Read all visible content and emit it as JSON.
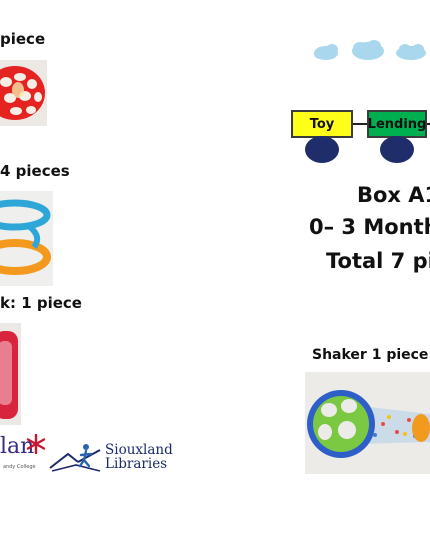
{
  "left_labels": {
    "top": "piece",
    "middle": "4 pieces",
    "bottom": "k: 1 piece"
  },
  "train": {
    "car1": "Toy",
    "car2": "Lending",
    "colors": {
      "car1": "#ffff1a",
      "car2": "#00b050",
      "wheel": "#1f2d6b"
    }
  },
  "box": {
    "line1": "Box A1",
    "line2": "0– 3 Month",
    "line3": "Total 7 pi"
  },
  "shaker_label": "Shaker 1 piece",
  "logos": {
    "left_fragment": "lan",
    "left_sub": "andy College",
    "siouxland_line1": "Siouxland",
    "siouxland_line2": "Libraries"
  }
}
